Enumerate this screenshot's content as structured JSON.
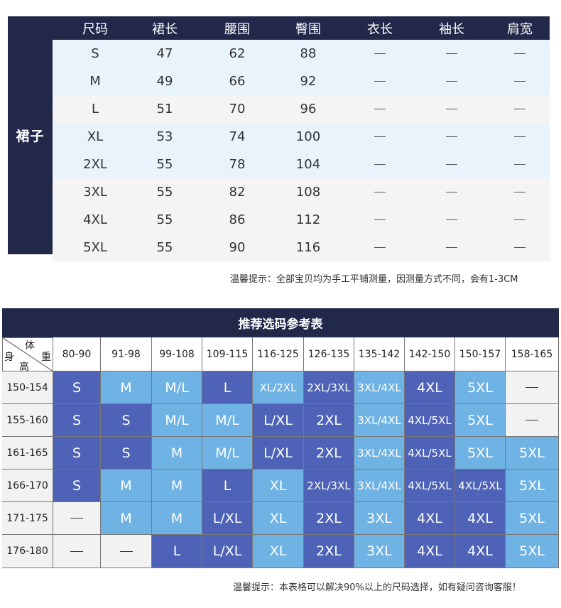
{
  "size_chart": {
    "category": "裙子",
    "headers": [
      "尺码",
      "裙长",
      "腰围",
      "臀围",
      "衣长",
      "袖长",
      "肩宽"
    ],
    "rows": [
      [
        "S",
        "47",
        "62",
        "88",
        "—",
        "—",
        "—"
      ],
      [
        "M",
        "49",
        "66",
        "92",
        "—",
        "—",
        "—"
      ],
      [
        "L",
        "51",
        "70",
        "96",
        "—",
        "—",
        "—"
      ],
      [
        "XL",
        "53",
        "74",
        "100",
        "—",
        "—",
        "—"
      ],
      [
        "2XL",
        "55",
        "78",
        "104",
        "—",
        "—",
        "—"
      ],
      [
        "3XL",
        "55",
        "82",
        "108",
        "—",
        "—",
        "—"
      ],
      [
        "4XL",
        "55",
        "86",
        "112",
        "—",
        "—",
        "—"
      ],
      [
        "5XL",
        "55",
        "90",
        "116",
        "—",
        "—",
        "—"
      ]
    ],
    "note": "温馨提示：全部宝贝均为手工平铺测量，因测量方式不同，会有1-3CM"
  },
  "recommend_chart": {
    "title": "推荐选码参考表",
    "corner": {
      "weight_label_1": "体",
      "weight_label_2": "重",
      "height_label_1": "身",
      "height_label_2": "高"
    },
    "weights": [
      "80-90",
      "91-98",
      "99-108",
      "109-115",
      "116-125",
      "126-135",
      "135-142",
      "142-150",
      "150-157",
      "158-165"
    ],
    "rows": [
      {
        "height": "150-154",
        "cells": [
          "S",
          "M",
          "M/L",
          "L",
          "XL/2XL",
          "2XL/3XL",
          "3XL/4XL",
          "4XL",
          "5XL",
          "—"
        ],
        "tones": [
          "dark",
          "light",
          "light",
          "dark",
          "light",
          "dark",
          "light",
          "dark",
          "light",
          "none"
        ]
      },
      {
        "height": "155-160",
        "cells": [
          "S",
          "S",
          "M/L",
          "M/L",
          "L/XL",
          "2XL",
          "3XL/4XL",
          "4XL/5XL",
          "5XL",
          "—"
        ],
        "tones": [
          "dark",
          "dark",
          "light",
          "light",
          "dark",
          "dark",
          "light",
          "dark",
          "light",
          "none"
        ]
      },
      {
        "height": "161-165",
        "cells": [
          "S",
          "S",
          "M",
          "M/L",
          "L/XL",
          "2XL",
          "3XL/4XL",
          "4XL/5XL",
          "5XL",
          "5XL"
        ],
        "tones": [
          "dark",
          "dark",
          "light",
          "light",
          "dark",
          "dark",
          "light",
          "dark",
          "light",
          "light"
        ]
      },
      {
        "height": "166-170",
        "cells": [
          "S",
          "M",
          "M",
          "L",
          "XL",
          "2XL/3XL",
          "3XL/4XL",
          "4XL/5XL",
          "4XL/5XL",
          "5XL"
        ],
        "tones": [
          "dark",
          "light",
          "light",
          "dark",
          "light",
          "dark",
          "light",
          "dark",
          "dark",
          "light"
        ]
      },
      {
        "height": "171-175",
        "cells": [
          "—",
          "M",
          "M",
          "L/XL",
          "XL",
          "2XL",
          "3XL",
          "4XL",
          "4XL",
          "5XL"
        ],
        "tones": [
          "none",
          "light",
          "light",
          "dark",
          "light",
          "dark",
          "light",
          "dark",
          "dark",
          "light"
        ]
      },
      {
        "height": "176-180",
        "cells": [
          "—",
          "—",
          "L",
          "L/XL",
          "XL",
          "2XL",
          "3XL",
          "4XL",
          "4XL",
          "5XL"
        ],
        "tones": [
          "none",
          "none",
          "dark",
          "dark",
          "light",
          "dark",
          "light",
          "dark",
          "dark",
          "light"
        ]
      }
    ],
    "note": "温馨提示：本表格可以解决90%以上的尺码选择，如有疑问咨询客服！"
  },
  "colors": {
    "navy": "#22284a",
    "dark_blue": "#4e62b7",
    "light_blue": "#6fb2e4",
    "band_a": "#e9f3fb",
    "band_b": "#f4f4f4"
  }
}
